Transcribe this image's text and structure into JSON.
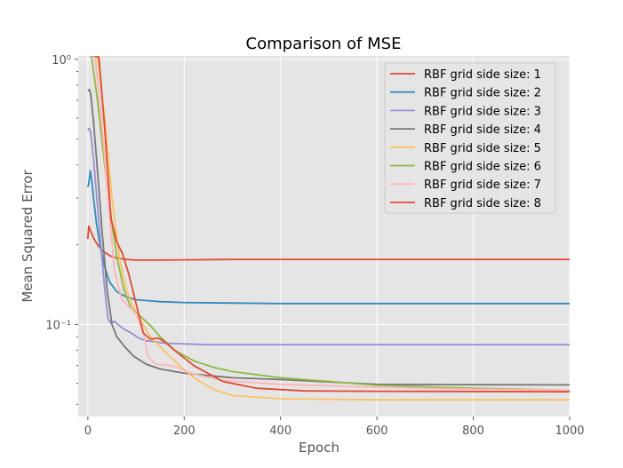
{
  "chart_data": {
    "type": "line",
    "title": "Comparison of MSE",
    "xlabel": "Epoch",
    "ylabel": "Mean Squared Error",
    "xlim": [
      -20,
      1000
    ],
    "ylim": [
      0.045,
      1.03
    ],
    "yscale": "log",
    "grid": true,
    "legend_position": "top-right",
    "x_ticks": [
      0,
      200,
      400,
      600,
      800,
      1000
    ],
    "x_tick_labels": [
      "0",
      "200",
      "400",
      "600",
      "800",
      "1000"
    ],
    "y_major_ticks": [
      0.1,
      1.0
    ],
    "y_major_tick_labels": [
      "10⁻¹",
      "10⁰"
    ],
    "y_minor_ticks": [
      0.05,
      0.06,
      0.07,
      0.08,
      0.09,
      0.2,
      0.3,
      0.4,
      0.5,
      0.6,
      0.7,
      0.8,
      0.9
    ],
    "series": [
      {
        "name": "RBF grid side size: 1",
        "color": "#E24A33",
        "points": [
          [
            0,
            0.21
          ],
          [
            2,
            0.235
          ],
          [
            6,
            0.225
          ],
          [
            12,
            0.212
          ],
          [
            20,
            0.2
          ],
          [
            30,
            0.19
          ],
          [
            45,
            0.182
          ],
          [
            60,
            0.178
          ],
          [
            80,
            0.176
          ],
          [
            100,
            0.175
          ],
          [
            150,
            0.175
          ],
          [
            300,
            0.176
          ],
          [
            500,
            0.176
          ],
          [
            1000,
            0.176
          ]
        ]
      },
      {
        "name": "RBF grid side size: 2",
        "color": "#348ABD",
        "points": [
          [
            0,
            0.33
          ],
          [
            2,
            0.34
          ],
          [
            5,
            0.38
          ],
          [
            8,
            0.35
          ],
          [
            12,
            0.3
          ],
          [
            18,
            0.24
          ],
          [
            25,
            0.2
          ],
          [
            35,
            0.165
          ],
          [
            45,
            0.145
          ],
          [
            60,
            0.133
          ],
          [
            80,
            0.127
          ],
          [
            100,
            0.124
          ],
          [
            150,
            0.122
          ],
          [
            200,
            0.121
          ],
          [
            400,
            0.12
          ],
          [
            1000,
            0.12
          ]
        ]
      },
      {
        "name": "RBF grid side size: 3",
        "color": "#988ED5",
        "points": [
          [
            0,
            0.54
          ],
          [
            3,
            0.55
          ],
          [
            6,
            0.53
          ],
          [
            12,
            0.42
          ],
          [
            20,
            0.28
          ],
          [
            28,
            0.19
          ],
          [
            36,
            0.13
          ],
          [
            42,
            0.105
          ],
          [
            48,
            0.101
          ],
          [
            55,
            0.103
          ],
          [
            62,
            0.1
          ],
          [
            75,
            0.096
          ],
          [
            90,
            0.093
          ],
          [
            105,
            0.089
          ],
          [
            120,
            0.087
          ],
          [
            160,
            0.085
          ],
          [
            250,
            0.084
          ],
          [
            400,
            0.084
          ],
          [
            1000,
            0.084
          ]
        ]
      },
      {
        "name": "RBF grid side size: 4",
        "color": "#777777",
        "points": [
          [
            0,
            0.76
          ],
          [
            3,
            0.77
          ],
          [
            6,
            0.74
          ],
          [
            12,
            0.58
          ],
          [
            20,
            0.38
          ],
          [
            30,
            0.22
          ],
          [
            40,
            0.135
          ],
          [
            50,
            0.1
          ],
          [
            60,
            0.09
          ],
          [
            75,
            0.083
          ],
          [
            95,
            0.076
          ],
          [
            120,
            0.071
          ],
          [
            150,
            0.068
          ],
          [
            200,
            0.0655
          ],
          [
            300,
            0.063
          ],
          [
            400,
            0.062
          ],
          [
            600,
            0.0595
          ],
          [
            800,
            0.0593
          ],
          [
            1000,
            0.0592
          ]
        ]
      },
      {
        "name": "RBF grid side size: 5",
        "color": "#FBC15E",
        "points": [
          [
            0,
            1.05
          ],
          [
            20,
            1.02
          ],
          [
            35,
            0.6
          ],
          [
            50,
            0.3
          ],
          [
            65,
            0.18
          ],
          [
            80,
            0.135
          ],
          [
            100,
            0.11
          ],
          [
            130,
            0.09
          ],
          [
            160,
            0.079
          ],
          [
            190,
            0.07
          ],
          [
            220,
            0.063
          ],
          [
            260,
            0.057
          ],
          [
            300,
            0.054
          ],
          [
            400,
            0.0525
          ],
          [
            600,
            0.052
          ],
          [
            1000,
            0.052
          ]
        ]
      },
      {
        "name": "RBF grid side size: 6",
        "color": "#8EBA42",
        "points": [
          [
            0,
            1.05
          ],
          [
            8,
            1.02
          ],
          [
            20,
            0.7
          ],
          [
            35,
            0.4
          ],
          [
            50,
            0.24
          ],
          [
            60,
            0.18
          ],
          [
            75,
            0.135
          ],
          [
            90,
            0.115
          ],
          [
            110,
            0.107
          ],
          [
            130,
            0.099
          ],
          [
            150,
            0.09
          ],
          [
            180,
            0.08
          ],
          [
            220,
            0.073
          ],
          [
            260,
            0.069
          ],
          [
            300,
            0.0665
          ],
          [
            400,
            0.063
          ],
          [
            500,
            0.061
          ],
          [
            600,
            0.059
          ],
          [
            800,
            0.0575
          ],
          [
            1000,
            0.0565
          ]
        ]
      },
      {
        "name": "RBF grid side size: 7",
        "color": "#FFB5B8",
        "points": [
          [
            0,
            1.05
          ],
          [
            15,
            1.02
          ],
          [
            28,
            0.6
          ],
          [
            42,
            0.3
          ],
          [
            55,
            0.16
          ],
          [
            70,
            0.125
          ],
          [
            85,
            0.117
          ],
          [
            100,
            0.11
          ],
          [
            115,
            0.093
          ],
          [
            125,
            0.076
          ],
          [
            140,
            0.071
          ],
          [
            160,
            0.0705
          ],
          [
            180,
            0.0695
          ],
          [
            220,
            0.065
          ],
          [
            280,
            0.0615
          ],
          [
            400,
            0.0595
          ],
          [
            600,
            0.058
          ],
          [
            800,
            0.057
          ],
          [
            1000,
            0.0565
          ]
        ]
      },
      {
        "name": "RBF grid side size: 8",
        "color": "#E24A33",
        "points": [
          [
            0,
            1.05
          ],
          [
            23,
            1.02
          ],
          [
            35,
            0.55
          ],
          [
            48,
            0.25
          ],
          [
            60,
            0.205
          ],
          [
            72,
            0.185
          ],
          [
            85,
            0.155
          ],
          [
            100,
            0.12
          ],
          [
            115,
            0.093
          ],
          [
            130,
            0.088
          ],
          [
            145,
            0.089
          ],
          [
            160,
            0.086
          ],
          [
            180,
            0.08
          ],
          [
            220,
            0.07
          ],
          [
            280,
            0.061
          ],
          [
            350,
            0.0575
          ],
          [
            450,
            0.0562
          ],
          [
            600,
            0.056
          ],
          [
            1000,
            0.0558
          ]
        ]
      }
    ]
  }
}
